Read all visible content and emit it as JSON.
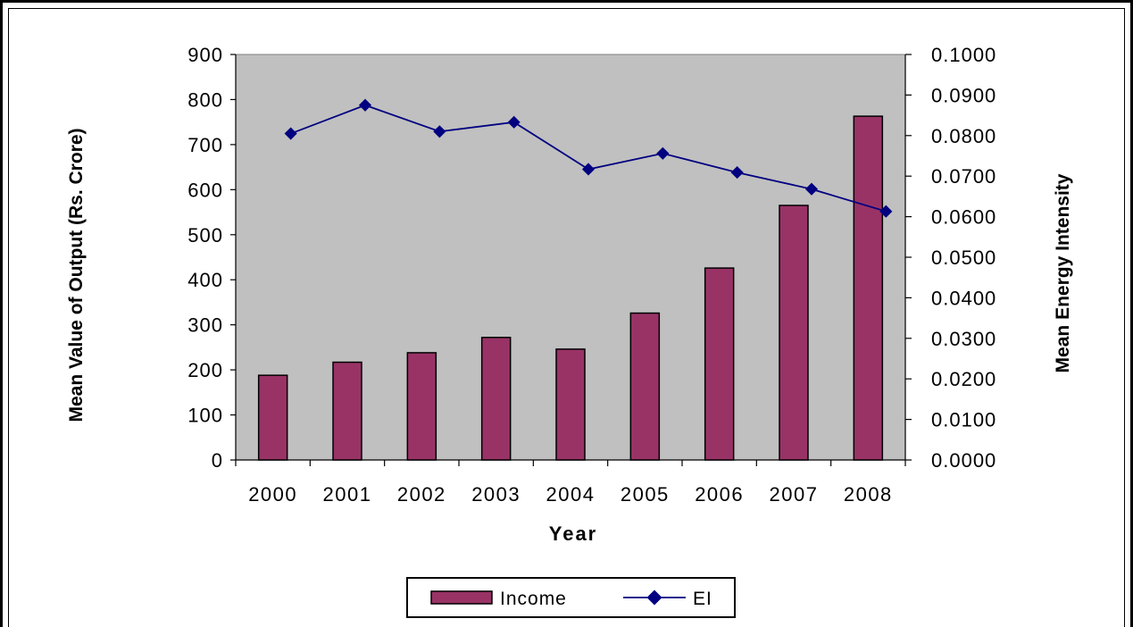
{
  "chart_data": {
    "type": "bar",
    "categories": [
      "2000",
      "2001",
      "2002",
      "2003",
      "2004",
      "2005",
      "2006",
      "2007",
      "2008"
    ],
    "series": [
      {
        "name": "Income",
        "type": "bar",
        "axis": "left",
        "values": [
          188,
          217,
          238,
          272,
          246,
          326,
          426,
          565,
          763
        ],
        "color": "#993366"
      },
      {
        "name": "EI",
        "type": "line",
        "axis": "right",
        "values": [
          0.0805,
          0.0875,
          0.081,
          0.0833,
          0.0717,
          0.0756,
          0.0709,
          0.0668,
          0.0613
        ],
        "color": "#000080"
      }
    ],
    "xlabel": "Year",
    "ylabel": "Mean Value of Output (Rs. Crore)",
    "y2label": "Mean Energy Intensity",
    "ylim": [
      0,
      900
    ],
    "y2lim": [
      0,
      0.1
    ],
    "yticks": [
      "0",
      "100",
      "200",
      "300",
      "400",
      "500",
      "600",
      "700",
      "800",
      "900"
    ],
    "y2ticks": [
      "0.0000",
      "0.0100",
      "0.0200",
      "0.0300",
      "0.0400",
      "0.0500",
      "0.0600",
      "0.0700",
      "0.0800",
      "0.0900",
      "0.1000"
    ],
    "plot_background": "#c0c0c0",
    "grid": false,
    "legend_position": "bottom"
  }
}
